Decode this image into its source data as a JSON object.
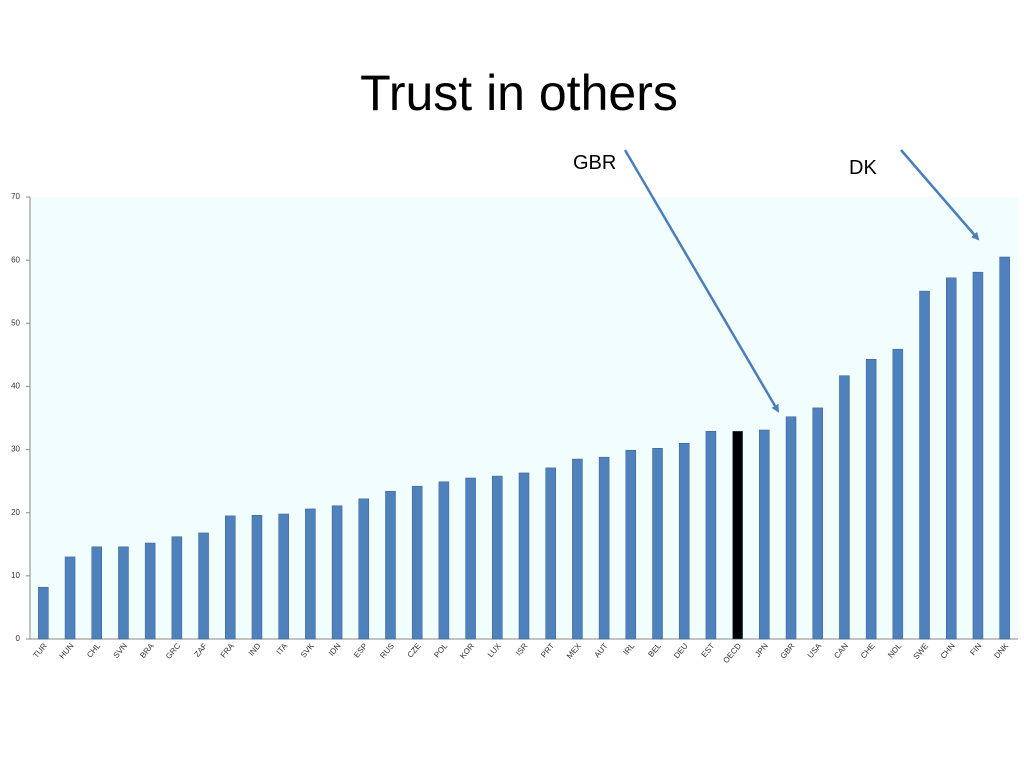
{
  "chart_data": {
    "type": "bar",
    "title": "Trust in others",
    "annotations": [
      "GBR",
      "DK"
    ],
    "categories": [
      "TUR",
      "HUN",
      "CHL",
      "SVN",
      "BRA",
      "GRC",
      "ZAF",
      "FRA",
      "IND",
      "ITA",
      "SVK",
      "IDN",
      "ESP",
      "RUS",
      "CZE",
      "POL",
      "KOR",
      "LUX",
      "ISR",
      "PRT",
      "MEX",
      "AUT",
      "IRL",
      "BEL",
      "DEU",
      "EST",
      "OECD",
      "JPN",
      "GBR",
      "USA",
      "CAN",
      "CHE",
      "NDL",
      "SWE",
      "CHN",
      "FIN",
      "DNK"
    ],
    "values": [
      8.2,
      13.0,
      14.6,
      14.6,
      15.2,
      16.2,
      16.8,
      19.5,
      19.6,
      19.8,
      20.6,
      21.1,
      22.2,
      23.4,
      24.2,
      24.9,
      25.5,
      25.8,
      26.3,
      27.1,
      28.5,
      28.8,
      29.9,
      30.2,
      31.0,
      32.9,
      32.9,
      33.1,
      35.2,
      36.6,
      41.7,
      44.3,
      45.9,
      55.1,
      57.2,
      58.1,
      60.5
    ],
    "colors": [
      "#4f81bd",
      "#4f81bd",
      "#4f81bd",
      "#4f81bd",
      "#4f81bd",
      "#4f81bd",
      "#4f81bd",
      "#4f81bd",
      "#4f81bd",
      "#4f81bd",
      "#4f81bd",
      "#4f81bd",
      "#4f81bd",
      "#4f81bd",
      "#4f81bd",
      "#4f81bd",
      "#4f81bd",
      "#4f81bd",
      "#4f81bd",
      "#4f81bd",
      "#4f81bd",
      "#4f81bd",
      "#4f81bd",
      "#4f81bd",
      "#4f81bd",
      "#4f81bd",
      "#000000",
      "#4f81bd",
      "#4f81bd",
      "#4f81bd",
      "#4f81bd",
      "#4f81bd",
      "#4f81bd",
      "#4f81bd",
      "#4f81bd",
      "#4f81bd",
      "#4f81bd"
    ],
    "ylim": [
      0,
      70
    ],
    "yticks": [
      0,
      10,
      20,
      30,
      40,
      50,
      60,
      70
    ],
    "grid": false
  }
}
